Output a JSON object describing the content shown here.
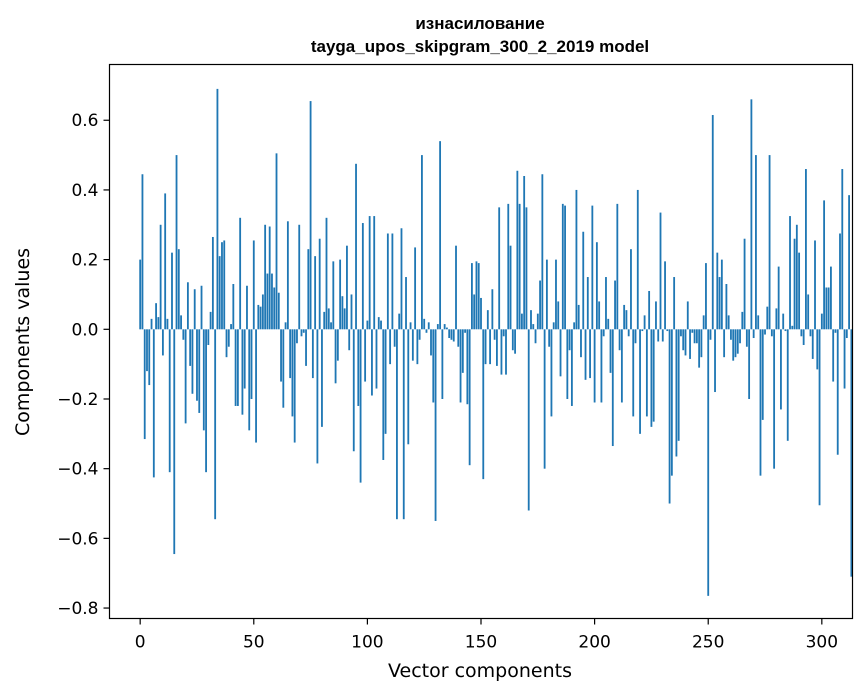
{
  "chart_data": {
    "type": "bar",
    "title": "изнасилование",
    "subtitle": "tayga_upos_skipgram_300_2_2019 model",
    "xlabel": "Vector components",
    "ylabel": "Components values",
    "xlim": [
      -13.5,
      313.5
    ],
    "ylim": [
      -0.83,
      0.76
    ],
    "xticks": [
      0,
      50,
      100,
      150,
      200,
      250,
      300
    ],
    "xtick_labels": [
      "0",
      "50",
      "100",
      "150",
      "200",
      "250",
      "300"
    ],
    "yticks": [
      -0.8,
      -0.6,
      -0.4,
      -0.2,
      0.0,
      0.2,
      0.4,
      0.6
    ],
    "ytick_labels": [
      "−0.8",
      "−0.6",
      "−0.4",
      "−0.2",
      "0.0",
      "0.2",
      "0.4",
      "0.6"
    ],
    "bar_color": "#1f77b4",
    "values": [
      0.2,
      0.445,
      -0.315,
      -0.12,
      -0.16,
      0.03,
      -0.425,
      0.075,
      0.035,
      0.3,
      -0.075,
      0.39,
      0.03,
      -0.41,
      0.22,
      -0.645,
      0.5,
      0.23,
      0.04,
      -0.03,
      -0.27,
      0.135,
      -0.105,
      -0.185,
      0.115,
      -0.205,
      -0.24,
      0.125,
      -0.29,
      -0.41,
      -0.045,
      0.05,
      0.265,
      -0.545,
      0.69,
      0.21,
      0.25,
      0.255,
      -0.08,
      -0.05,
      0.015,
      0.13,
      -0.22,
      -0.22,
      0.32,
      -0.245,
      -0.17,
      0.125,
      -0.29,
      -0.2,
      0.255,
      -0.325,
      0.07,
      0.065,
      0.1,
      0.3,
      0.16,
      0.295,
      0.16,
      0.12,
      0.505,
      0.105,
      -0.15,
      -0.225,
      0.02,
      0.31,
      -0.14,
      -0.25,
      -0.325,
      -0.04,
      0.3,
      -0.02,
      -0.01,
      -0.105,
      0.23,
      0.655,
      -0.14,
      0.21,
      -0.385,
      0.26,
      -0.28,
      0.05,
      0.32,
      0.06,
      0.02,
      0.195,
      -0.155,
      -0.09,
      0.2,
      0.095,
      0.06,
      0.24,
      -0.06,
      0.1,
      -0.35,
      0.475,
      -0.22,
      -0.44,
      0.305,
      -0.15,
      0.025,
      0.325,
      -0.19,
      0.325,
      -0.17,
      0.035,
      0.025,
      -0.375,
      -0.3,
      0.275,
      -0.1,
      0.275,
      -0.05,
      -0.545,
      0.045,
      0.29,
      -0.545,
      0.15,
      -0.33,
      0.02,
      -0.09,
      0.235,
      -0.1,
      -0.03,
      0.5,
      0.03,
      -0.01,
      0.02,
      -0.075,
      -0.21,
      -0.55,
      0.015,
      0.54,
      -0.2,
      0.015,
      0.005,
      -0.025,
      -0.03,
      -0.035,
      0.24,
      -0.05,
      -0.21,
      -0.125,
      -0.01,
      -0.215,
      -0.39,
      0.19,
      0.1,
      0.195,
      0.19,
      0.09,
      -0.43,
      -0.1,
      0.055,
      -0.1,
      0.115,
      -0.03,
      -0.105,
      0.35,
      -0.13,
      -0.02,
      -0.13,
      0.36,
      0.24,
      -0.06,
      -0.07,
      0.455,
      0.36,
      0.045,
      0.44,
      0.35,
      -0.52,
      0.055,
      0.015,
      -0.04,
      0.045,
      0.14,
      0.445,
      -0.4,
      0.2,
      -0.05,
      -0.25,
      0.02,
      0.2,
      0.08,
      -0.135,
      0.36,
      0.355,
      -0.2,
      -0.06,
      -0.22,
      0.02,
      0.4,
      0.07,
      -0.08,
      0.28,
      -0.145,
      0.15,
      -0.14,
      0.355,
      -0.21,
      0.25,
      0.08,
      -0.21,
      -0.02,
      0.15,
      0.03,
      -0.125,
      -0.335,
      0.14,
      0.36,
      -0.06,
      -0.21,
      0.07,
      0.055,
      -0.02,
      0.23,
      -0.25,
      -0.04,
      0.4,
      -0.3,
      -0.005,
      0.04,
      -0.25,
      0.11,
      -0.28,
      -0.265,
      0.08,
      -0.035,
      0.335,
      -0.035,
      0.195,
      -0.005,
      -0.5,
      -0.42,
      0.15,
      -0.365,
      -0.32,
      -0.02,
      -0.06,
      -0.075,
      0.08,
      -0.085,
      -0.01,
      -0.04,
      -0.04,
      -0.11,
      -0.08,
      0.04,
      0.19,
      -0.765,
      -0.03,
      0.615,
      -0.18,
      0.22,
      0.15,
      0.2,
      -0.08,
      0.13,
      0.04,
      -0.03,
      -0.09,
      -0.08,
      -0.07,
      -0.04,
      0.05,
      0.26,
      -0.05,
      -0.2,
      0.66,
      -0.025,
      0.5,
      0.04,
      -0.42,
      -0.26,
      -0.015,
      0.065,
      0.5,
      -0.02,
      -0.4,
      0.06,
      0.18,
      -0.23,
      0.045,
      -0.005,
      -0.32,
      0.325,
      0.01,
      0.26,
      0.3,
      0.22,
      -0.02,
      -0.045,
      0.46,
      0.1,
      -0.02,
      -0.085,
      0.255,
      -0.115,
      -0.505,
      0.045,
      0.37,
      0.12,
      0.12,
      0.18,
      -0.15,
      -0.01,
      -0.36,
      0.275,
      0.46,
      -0.17,
      -0.025,
      0.385,
      -0.71
    ]
  }
}
